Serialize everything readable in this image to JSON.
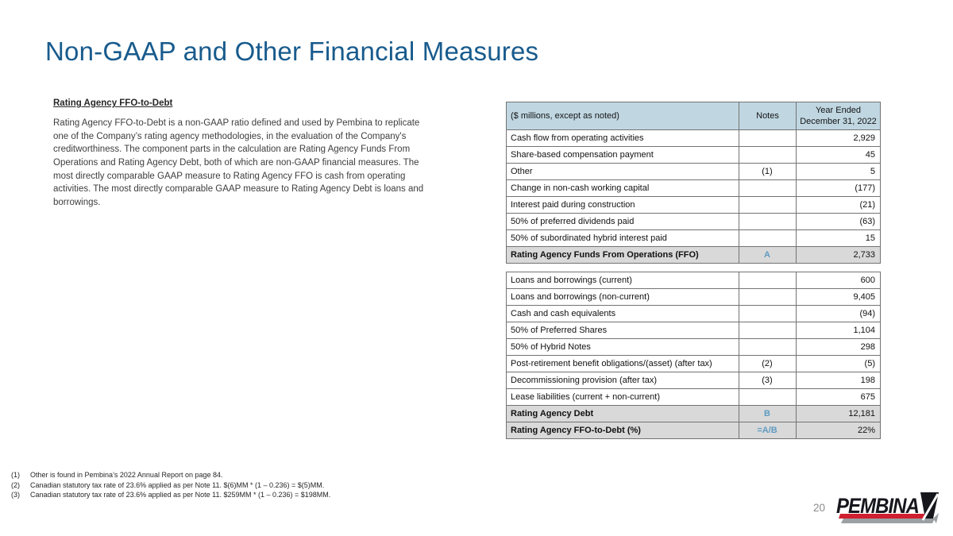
{
  "slide": {
    "title": "Non-GAAP and Other Financial Measures",
    "page_number": "20"
  },
  "left_panel": {
    "heading": "Rating Agency FFO-to-Debt",
    "paragraph": "Rating Agency FFO-to-Debt is a non-GAAP ratio defined and used by Pembina to replicate one of the Company’s rating agency methodologies, in the evaluation of the Company's creditworthiness.  The component parts in the calculation are Rating Agency Funds From Operations and Rating Agency Debt, both of which are non-GAAP financial measures. The most directly comparable GAAP measure to Rating Agency FFO is cash from operating activities.  The most directly comparable GAAP measure to Rating Agency Debt is loans and borrowings."
  },
  "table": {
    "header": {
      "col_label": "($ millions, except as noted)",
      "col_notes": "Notes",
      "col_period_line1": "Year Ended",
      "col_period_line2": "December 31, 2022"
    },
    "sections": [
      {
        "rows": [
          {
            "label": "Cash flow from operating activities",
            "note": "",
            "value": "2,929",
            "total": false
          },
          {
            "label": "Share-based compensation payment",
            "note": "",
            "value": "45",
            "total": false
          },
          {
            "label": "Other",
            "note": "(1)",
            "value": "5",
            "total": false
          },
          {
            "label": "Change in non-cash working capital",
            "note": "",
            "value": "(177)",
            "total": false
          },
          {
            "label": "Interest paid during construction",
            "note": "",
            "value": "(21)",
            "total": false
          },
          {
            "label": "50% of preferred dividends paid",
            "note": "",
            "value": "(63)",
            "total": false
          },
          {
            "label": "50% of subordinated hybrid interest paid",
            "note": "",
            "value": "15",
            "total": false
          },
          {
            "label": "Rating Agency Funds From Operations (FFO)",
            "note": "A",
            "value": "2,733",
            "total": true
          }
        ]
      },
      {
        "rows": [
          {
            "label": "Loans and borrowings (current)",
            "note": "",
            "value": "600",
            "total": false
          },
          {
            "label": "Loans and borrowings (non-current)",
            "note": "",
            "value": "9,405",
            "total": false
          },
          {
            "label": "Cash and cash equivalents",
            "note": "",
            "value": "(94)",
            "total": false
          },
          {
            "label": "50% of Preferred Shares",
            "note": "",
            "value": "1,104",
            "total": false
          },
          {
            "label": "50% of Hybrid Notes",
            "note": "",
            "value": "298",
            "total": false
          },
          {
            "label": "Post-retirement benefit obligations/(asset) (after tax)",
            "note": "(2)",
            "value": "(5)",
            "total": false
          },
          {
            "label": "Decommissioning provision (after tax)",
            "note": "(3)",
            "value": "198",
            "total": false
          },
          {
            "label": "Lease liabilities (current + non-current)",
            "note": "",
            "value": "675",
            "total": false
          },
          {
            "label": "Rating Agency Debt",
            "note": "B",
            "value": "12,181",
            "total": true
          },
          {
            "label": "Rating Agency FFO-to-Debt (%)",
            "note": "=A/B",
            "value": "22%",
            "total": true
          }
        ]
      }
    ]
  },
  "footnotes": [
    {
      "num": "(1)",
      "text": "Other is found in Pembina’s 2022 Annual Report on page 84."
    },
    {
      "num": "(2)",
      "text": "Canadian statutory tax rate of 23.6% applied as per Note 11. $(6)MM * (1 – 0.236) = $(5)MM."
    },
    {
      "num": "(3)",
      "text": "Canadian statutory tax rate of 23.6% applied as per Note 11. $259MM * (1 – 0.236) = $198MM."
    }
  ],
  "logo": {
    "text": "PEMBINA"
  },
  "colors": {
    "title_blue": "#185b8d",
    "table_header_bg": "#c0d7e2",
    "total_row_bg": "#d9d9d9",
    "note_ref_blue": "#5f9bc1",
    "logo_black": "#16161d",
    "logo_red": "#cf2030",
    "logo_gray": "#9aa0a3"
  }
}
